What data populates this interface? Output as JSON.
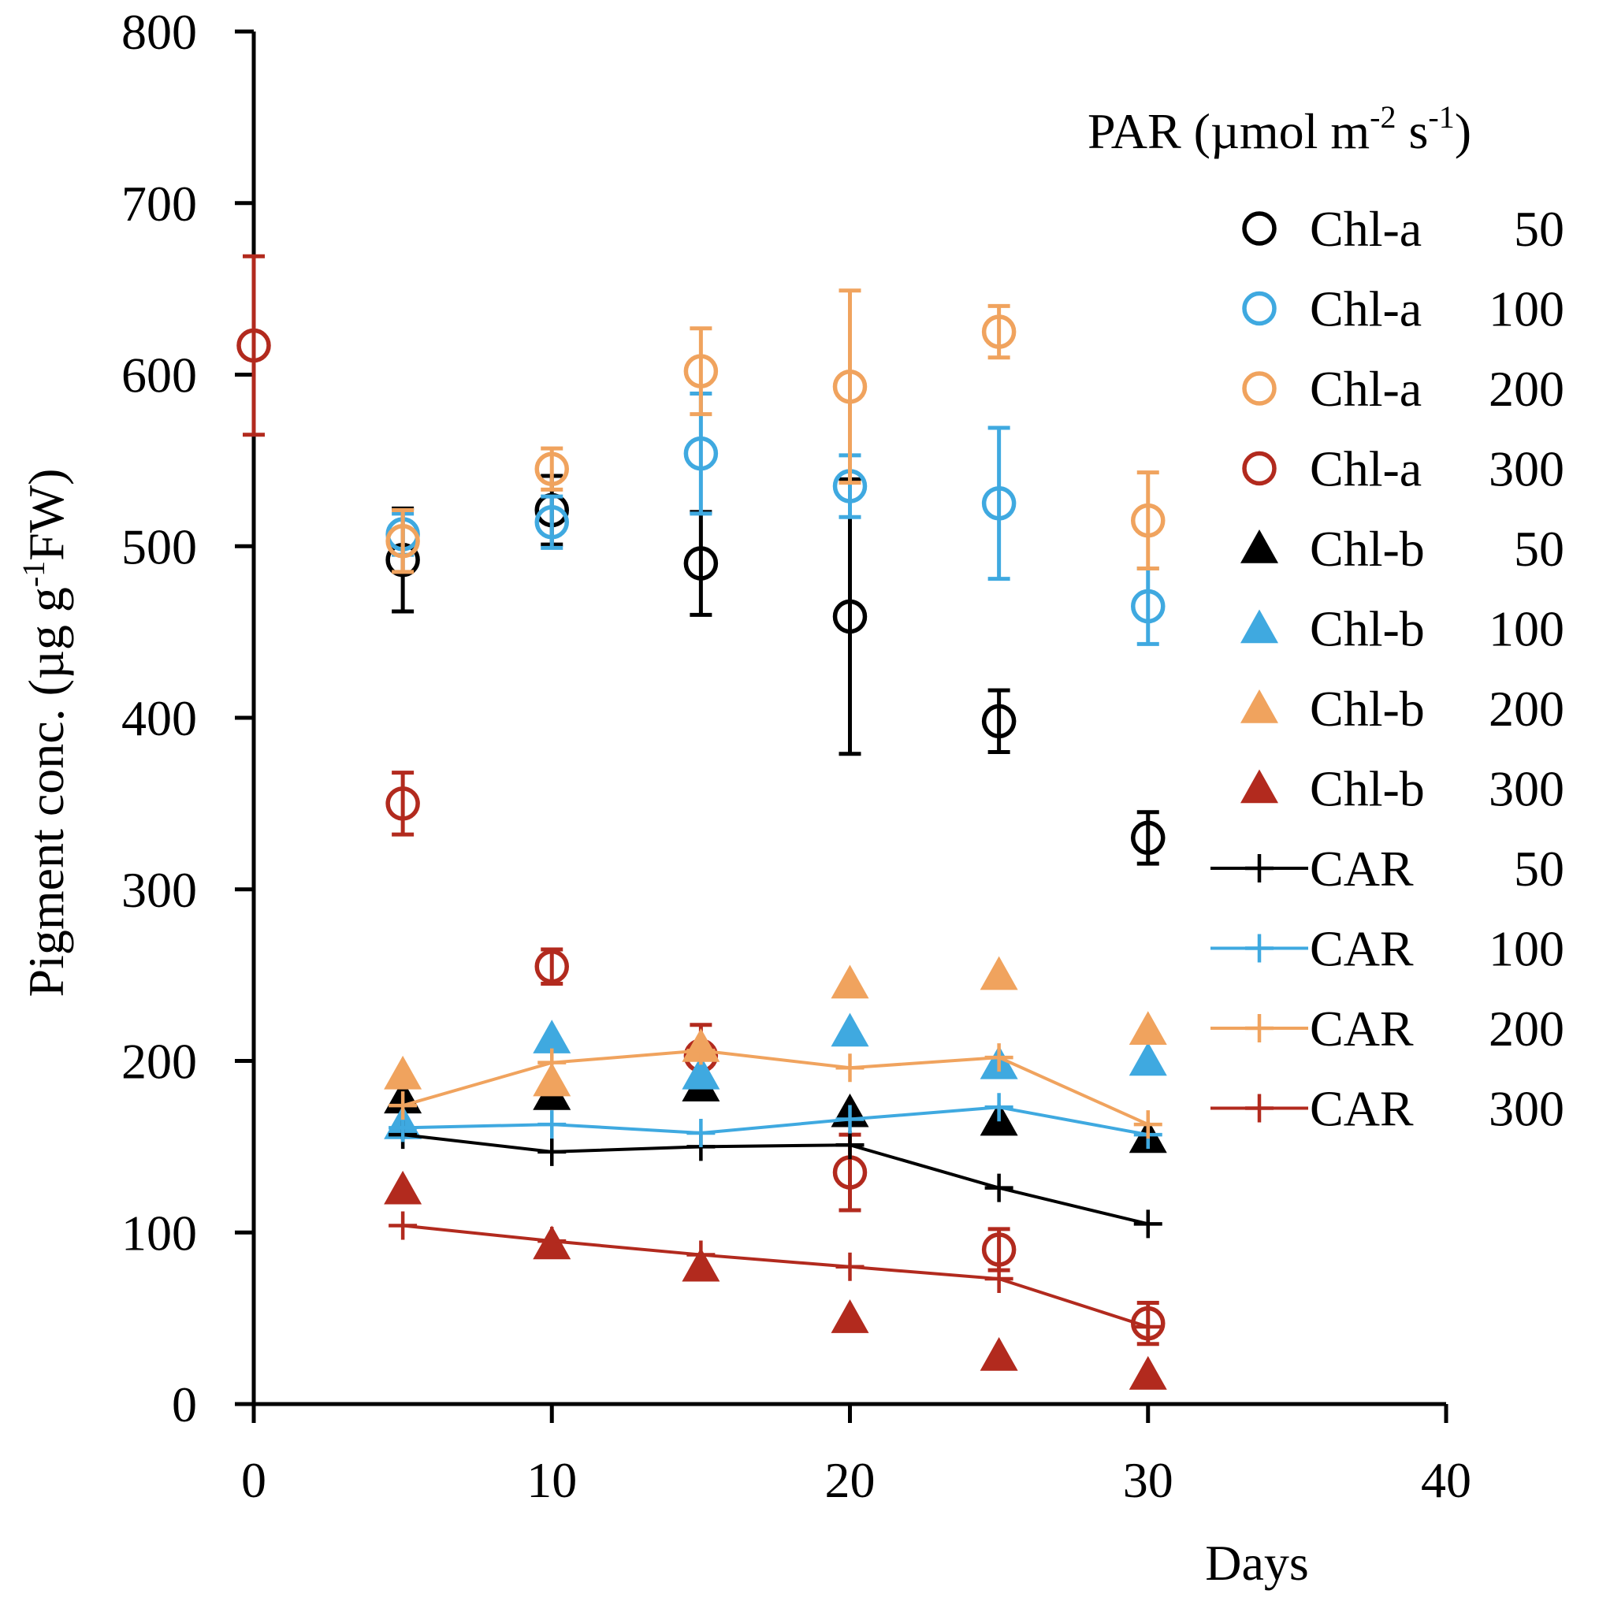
{
  "chart_data": {
    "type": "scatter",
    "title": "",
    "xlabel": "Days",
    "ylabel_parts": [
      "Pigment conc. (µg g",
      "-1",
      "FW)"
    ],
    "xlim": [
      0,
      40
    ],
    "ylim": [
      0,
      800
    ],
    "xticks": [
      0,
      10,
      20,
      30,
      40
    ],
    "yticks": [
      0,
      100,
      200,
      300,
      400,
      500,
      600,
      700,
      800
    ],
    "grid": false,
    "legend_placement": "top-right",
    "legend_title_parts": [
      "PAR (µmol m",
      "-2",
      " s",
      "-1",
      ")"
    ],
    "colors": {
      "50": "#000000",
      "100": "#3fa9e0",
      "200": "#f0a35e",
      "300": "#b22a1e"
    },
    "series": [
      {
        "name": "Chl-a",
        "par": "50",
        "marker": "open-circle",
        "line": false,
        "x": [
          5,
          10,
          15,
          20,
          25,
          30
        ],
        "y": [
          492,
          521,
          490,
          459,
          398,
          330
        ],
        "err": [
          30,
          20,
          30,
          80,
          18,
          15
        ]
      },
      {
        "name": "Chl-a",
        "par": "100",
        "marker": "open-circle",
        "line": false,
        "x": [
          5,
          10,
          15,
          20,
          25,
          30
        ],
        "y": [
          507,
          514,
          554,
          535,
          525,
          465
        ],
        "err": [
          12,
          15,
          35,
          18,
          44,
          22
        ]
      },
      {
        "name": "Chl-a",
        "par": "200",
        "marker": "open-circle",
        "line": false,
        "x": [
          5,
          10,
          15,
          20,
          25,
          30
        ],
        "y": [
          503,
          545,
          602,
          593,
          625,
          515
        ],
        "err": [
          18,
          12,
          25,
          56,
          15,
          28
        ]
      },
      {
        "name": "Chl-a",
        "par": "300",
        "marker": "open-circle",
        "line": false,
        "x": [
          0,
          5,
          10,
          15,
          20,
          25,
          30
        ],
        "y": [
          617,
          350,
          255,
          203,
          135,
          90,
          47
        ],
        "err": [
          52,
          18,
          10,
          18,
          22,
          12,
          12
        ]
      },
      {
        "name": "Chl-b",
        "par": "50",
        "marker": "filled-triangle",
        "line": false,
        "x": [
          5,
          10,
          15,
          20,
          25,
          30
        ],
        "y": [
          178,
          180,
          185,
          170,
          165,
          155
        ]
      },
      {
        "name": "Chl-b",
        "par": "100",
        "marker": "filled-triangle",
        "line": false,
        "x": [
          5,
          10,
          15,
          20,
          25,
          30
        ],
        "y": [
          163,
          213,
          192,
          217,
          198,
          200
        ]
      },
      {
        "name": "Chl-b",
        "par": "200",
        "marker": "filled-triangle",
        "line": false,
        "x": [
          5,
          10,
          15,
          20,
          25,
          30
        ],
        "y": [
          192,
          188,
          208,
          245,
          250,
          218
        ]
      },
      {
        "name": "Chl-b",
        "par": "300",
        "marker": "filled-triangle",
        "line": false,
        "x": [
          5,
          10,
          15,
          20,
          25,
          30
        ],
        "y": [
          125,
          93,
          80,
          50,
          28,
          17
        ]
      },
      {
        "name": "CAR",
        "par": "50",
        "marker": "plus",
        "line": true,
        "x": [
          5,
          10,
          15,
          20,
          25,
          30
        ],
        "y": [
          157,
          147,
          150,
          151,
          126,
          105
        ]
      },
      {
        "name": "CAR",
        "par": "100",
        "marker": "plus",
        "line": true,
        "x": [
          5,
          10,
          15,
          20,
          25,
          30
        ],
        "y": [
          161,
          163,
          158,
          166,
          173,
          157
        ]
      },
      {
        "name": "CAR",
        "par": "200",
        "marker": "plus",
        "line": true,
        "x": [
          5,
          10,
          15,
          20,
          25,
          30
        ],
        "y": [
          174,
          199,
          206,
          196,
          202,
          163
        ]
      },
      {
        "name": "CAR",
        "par": "300",
        "marker": "plus",
        "line": true,
        "x": [
          5,
          10,
          15,
          20,
          25,
          30
        ],
        "y": [
          104,
          95,
          87,
          80,
          73,
          45
        ]
      }
    ]
  }
}
